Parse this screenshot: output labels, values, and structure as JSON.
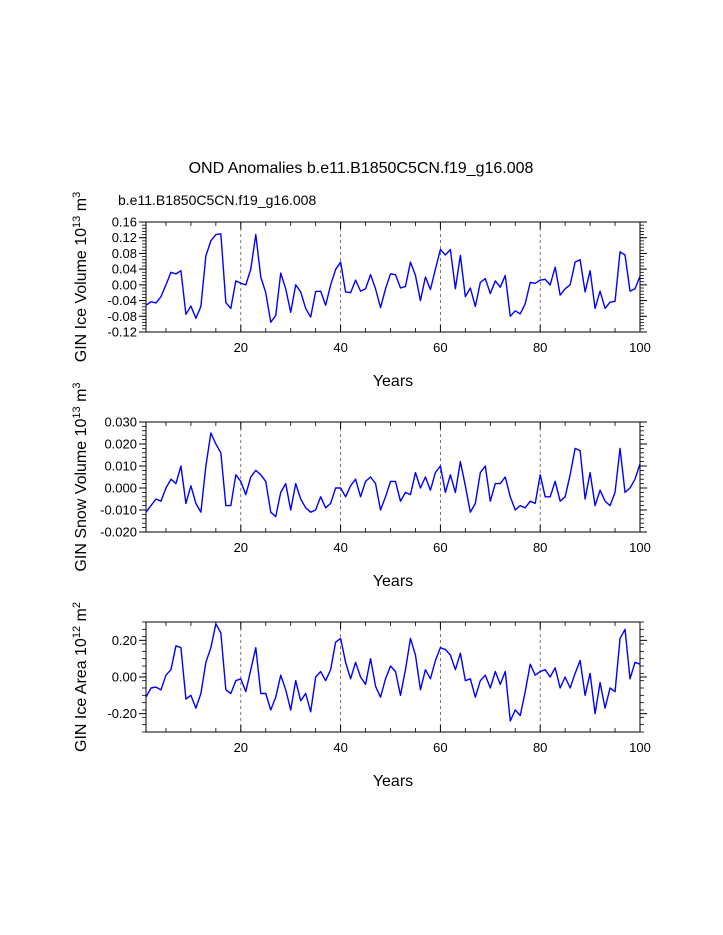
{
  "figure": {
    "title": "OND Anomalies b.e11.B1850C5CN.f19_g16.008",
    "case_label": "b.e11.B1850C5CN.f19_g16.008",
    "case_label_color": "#0000ff",
    "line_color": "#0000ff",
    "dash_color": "#555555"
  },
  "chart_data": [
    {
      "type": "line",
      "ylabel_main": "GIN Ice Volume 10",
      "ylabel_exp": "13",
      "ylabel_unit": " m",
      "ylabel_unit_exp": "3",
      "xlabel": "Years",
      "xlim": [
        1,
        100
      ],
      "ylim": [
        -0.12,
        0.16
      ],
      "xticks": [
        20,
        40,
        60,
        80,
        100
      ],
      "xtick_labels": [
        "20",
        "40",
        "60",
        "80",
        "100"
      ],
      "yticks": [
        -0.12,
        -0.08,
        -0.04,
        0.0,
        0.04,
        0.08,
        0.12,
        0.16
      ],
      "ytick_labels": [
        "-0.12",
        "-0.08",
        "-0.04",
        "0.00",
        "0.04",
        "0.08",
        "0.12",
        "0.16"
      ],
      "dashed_x": [
        20,
        40,
        60,
        80
      ],
      "values": [
        -0.052,
        -0.043,
        -0.046,
        -0.03,
        0.0,
        0.032,
        0.028,
        0.036,
        -0.075,
        -0.054,
        -0.085,
        -0.055,
        0.074,
        0.112,
        0.128,
        0.13,
        -0.045,
        -0.06,
        0.01,
        0.004,
        0.0,
        0.04,
        0.128,
        0.02,
        -0.02,
        -0.095,
        -0.078,
        0.03,
        -0.01,
        -0.07,
        0.0,
        -0.018,
        -0.06,
        -0.082,
        -0.017,
        -0.016,
        -0.052,
        0.0,
        0.039,
        0.058,
        -0.018,
        -0.02,
        0.012,
        -0.016,
        -0.01,
        0.026,
        -0.01,
        -0.058,
        -0.01,
        0.028,
        0.026,
        -0.008,
        -0.004,
        0.058,
        0.024,
        -0.04,
        0.02,
        -0.012,
        0.04,
        0.09,
        0.076,
        0.09,
        -0.01,
        0.075,
        -0.03,
        -0.008,
        -0.055,
        0.006,
        0.016,
        -0.022,
        0.01,
        -0.006,
        0.024,
        -0.08,
        -0.066,
        -0.074,
        -0.048,
        0.006,
        0.004,
        0.012,
        0.014,
        0.0,
        0.045,
        -0.026,
        -0.01,
        0.0,
        0.058,
        0.064,
        -0.018,
        0.036,
        -0.06,
        -0.016,
        -0.06,
        -0.044,
        -0.042,
        0.084,
        0.076,
        -0.016,
        -0.01,
        0.022
      ]
    },
    {
      "type": "line",
      "ylabel_main": "GIN Snow Volume 10",
      "ylabel_exp": "13",
      "ylabel_unit": " m",
      "ylabel_unit_exp": "3",
      "xlabel": "Years",
      "xlim": [
        1,
        100
      ],
      "ylim": [
        -0.02,
        0.03
      ],
      "xticks": [
        20,
        40,
        60,
        80,
        100
      ],
      "xtick_labels": [
        "20",
        "40",
        "60",
        "80",
        "100"
      ],
      "yticks": [
        -0.02,
        -0.01,
        0.0,
        0.01,
        0.02,
        0.03
      ],
      "ytick_labels": [
        "-0.020",
        "-0.010",
        "0.000",
        "0.010",
        "0.020",
        "0.030"
      ],
      "dashed_x": [
        20,
        40,
        60,
        80
      ],
      "values": [
        -0.011,
        -0.008,
        -0.005,
        -0.006,
        0.0,
        0.004,
        0.002,
        0.01,
        -0.007,
        0.001,
        -0.007,
        -0.011,
        0.01,
        0.025,
        0.02,
        0.016,
        -0.008,
        -0.008,
        0.006,
        0.003,
        -0.003,
        0.005,
        0.008,
        0.006,
        0.003,
        -0.011,
        -0.013,
        -0.002,
        0.002,
        -0.01,
        0.002,
        -0.005,
        -0.009,
        -0.011,
        -0.01,
        -0.004,
        -0.009,
        -0.007,
        0.0,
        0.0,
        -0.004,
        0.001,
        0.004,
        -0.004,
        0.003,
        0.005,
        0.002,
        -0.01,
        -0.004,
        0.003,
        0.003,
        -0.006,
        -0.002,
        -0.003,
        0.007,
        0.0,
        0.005,
        -0.001,
        0.007,
        0.01,
        -0.002,
        0.006,
        -0.002,
        0.012,
        0.001,
        -0.011,
        -0.007,
        0.007,
        0.01,
        -0.006,
        0.002,
        0.002,
        0.005,
        -0.004,
        -0.01,
        -0.008,
        -0.009,
        -0.006,
        -0.007,
        0.006,
        -0.004,
        -0.004,
        0.003,
        -0.006,
        -0.004,
        0.006,
        0.018,
        0.017,
        -0.005,
        0.007,
        -0.008,
        -0.001,
        -0.006,
        -0.008,
        -0.002,
        0.018,
        -0.002,
        0.0,
        0.004,
        0.011
      ]
    },
    {
      "type": "line",
      "ylabel_main": "GIN Ice Area 10",
      "ylabel_exp": "12",
      "ylabel_unit": " m",
      "ylabel_unit_exp": "2",
      "xlabel": "Years",
      "xlim": [
        1,
        100
      ],
      "ylim": [
        -0.3,
        0.3
      ],
      "xticks": [
        20,
        40,
        60,
        80,
        100
      ],
      "xtick_labels": [
        "20",
        "40",
        "60",
        "80",
        "100"
      ],
      "yticks": [
        -0.2,
        0.0,
        0.2
      ],
      "ytick_labels": [
        "-0.20",
        "0.00",
        "0.20"
      ],
      "dashed_x": [
        20,
        40,
        60,
        80
      ],
      "values": [
        -0.11,
        -0.06,
        -0.055,
        -0.07,
        0.01,
        0.04,
        0.17,
        0.16,
        -0.12,
        -0.1,
        -0.17,
        -0.09,
        0.08,
        0.16,
        0.29,
        0.24,
        -0.07,
        -0.09,
        -0.02,
        -0.01,
        -0.08,
        0.04,
        0.16,
        -0.09,
        -0.09,
        -0.18,
        -0.11,
        0.01,
        -0.07,
        -0.18,
        -0.02,
        -0.13,
        -0.09,
        -0.19,
        0.0,
        0.03,
        -0.02,
        0.04,
        0.19,
        0.21,
        0.08,
        -0.01,
        0.08,
        0.0,
        -0.04,
        0.1,
        -0.05,
        -0.11,
        -0.01,
        0.06,
        0.03,
        -0.1,
        0.04,
        0.21,
        0.12,
        -0.07,
        0.04,
        -0.01,
        0.09,
        0.16,
        0.15,
        0.12,
        0.04,
        0.13,
        -0.02,
        -0.01,
        -0.11,
        -0.02,
        0.01,
        -0.06,
        0.03,
        -0.04,
        0.03,
        -0.24,
        -0.18,
        -0.21,
        -0.08,
        0.07,
        0.01,
        0.03,
        0.04,
        0.0,
        0.05,
        -0.06,
        0.0,
        -0.06,
        0.02,
        0.09,
        -0.1,
        0.02,
        -0.2,
        -0.03,
        -0.17,
        -0.06,
        -0.08,
        0.21,
        0.26,
        -0.01,
        0.08,
        0.07
      ]
    }
  ]
}
